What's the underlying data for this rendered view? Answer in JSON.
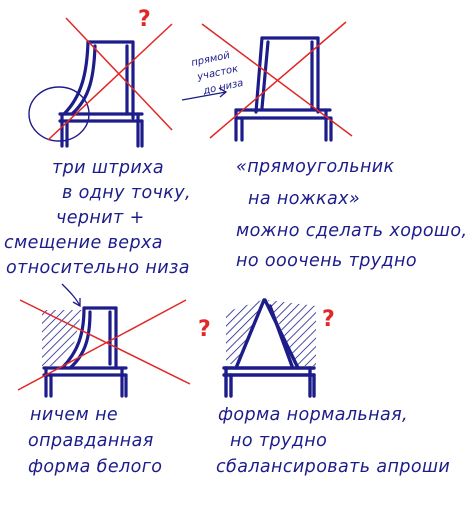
{
  "colors": {
    "ink": "#1c1c8a",
    "red": "#e02828",
    "paper": "#ffffff"
  },
  "sketch_1": {
    "question_mark": "?",
    "caption_lines": [
      "три штриха",
      "в одну точку,",
      "чернит +",
      "смещение верха",
      "относительно низа"
    ]
  },
  "sketch_2": {
    "side_note_lines": [
      "прямой",
      "участок",
      "до низа"
    ],
    "caption_lines": [
      "«прямоугольник",
      "на ножках»",
      "можно сделать хорошо,",
      "но ооочень трудно"
    ]
  },
  "sketch_3": {
    "caption_lines": [
      "ничем не",
      "оправданная",
      "форма белого"
    ]
  },
  "sketch_4": {
    "question_mark_left": "?",
    "question_mark_right": "?",
    "caption_lines": [
      "форма нормальная,",
      "но трудно",
      "сбалансировать апроши"
    ]
  }
}
